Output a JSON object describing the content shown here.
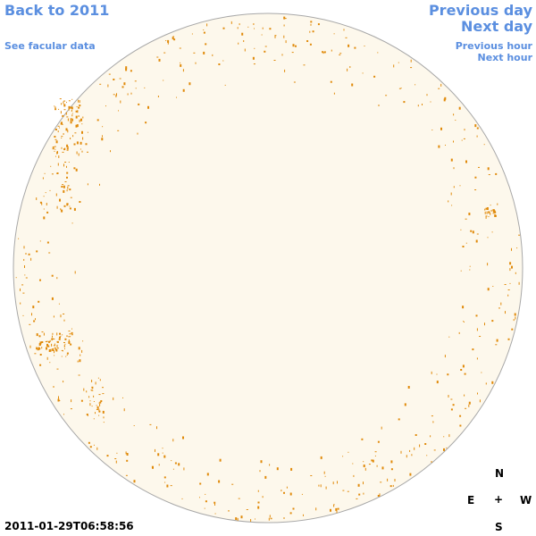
{
  "nav": {
    "back_label": "Back to 2011",
    "facular_label": "See facular data",
    "prev_day_label": "Previous day",
    "next_day_label": "Next day",
    "prev_hour_label": "Previous hour",
    "next_hour_label": "Next hour"
  },
  "timestamp": "2011-01-29T06:58:56",
  "compass": {
    "north": "N",
    "east": "E",
    "center": "+",
    "west": "W",
    "south": "S"
  },
  "colors": {
    "link": "#5b8fe0",
    "disk_fill": "#fdf8ec",
    "disk_edge": "#a8a8a8",
    "feature": "#e08a0a"
  },
  "icons": {
    "compass_center": "plus-icon"
  }
}
